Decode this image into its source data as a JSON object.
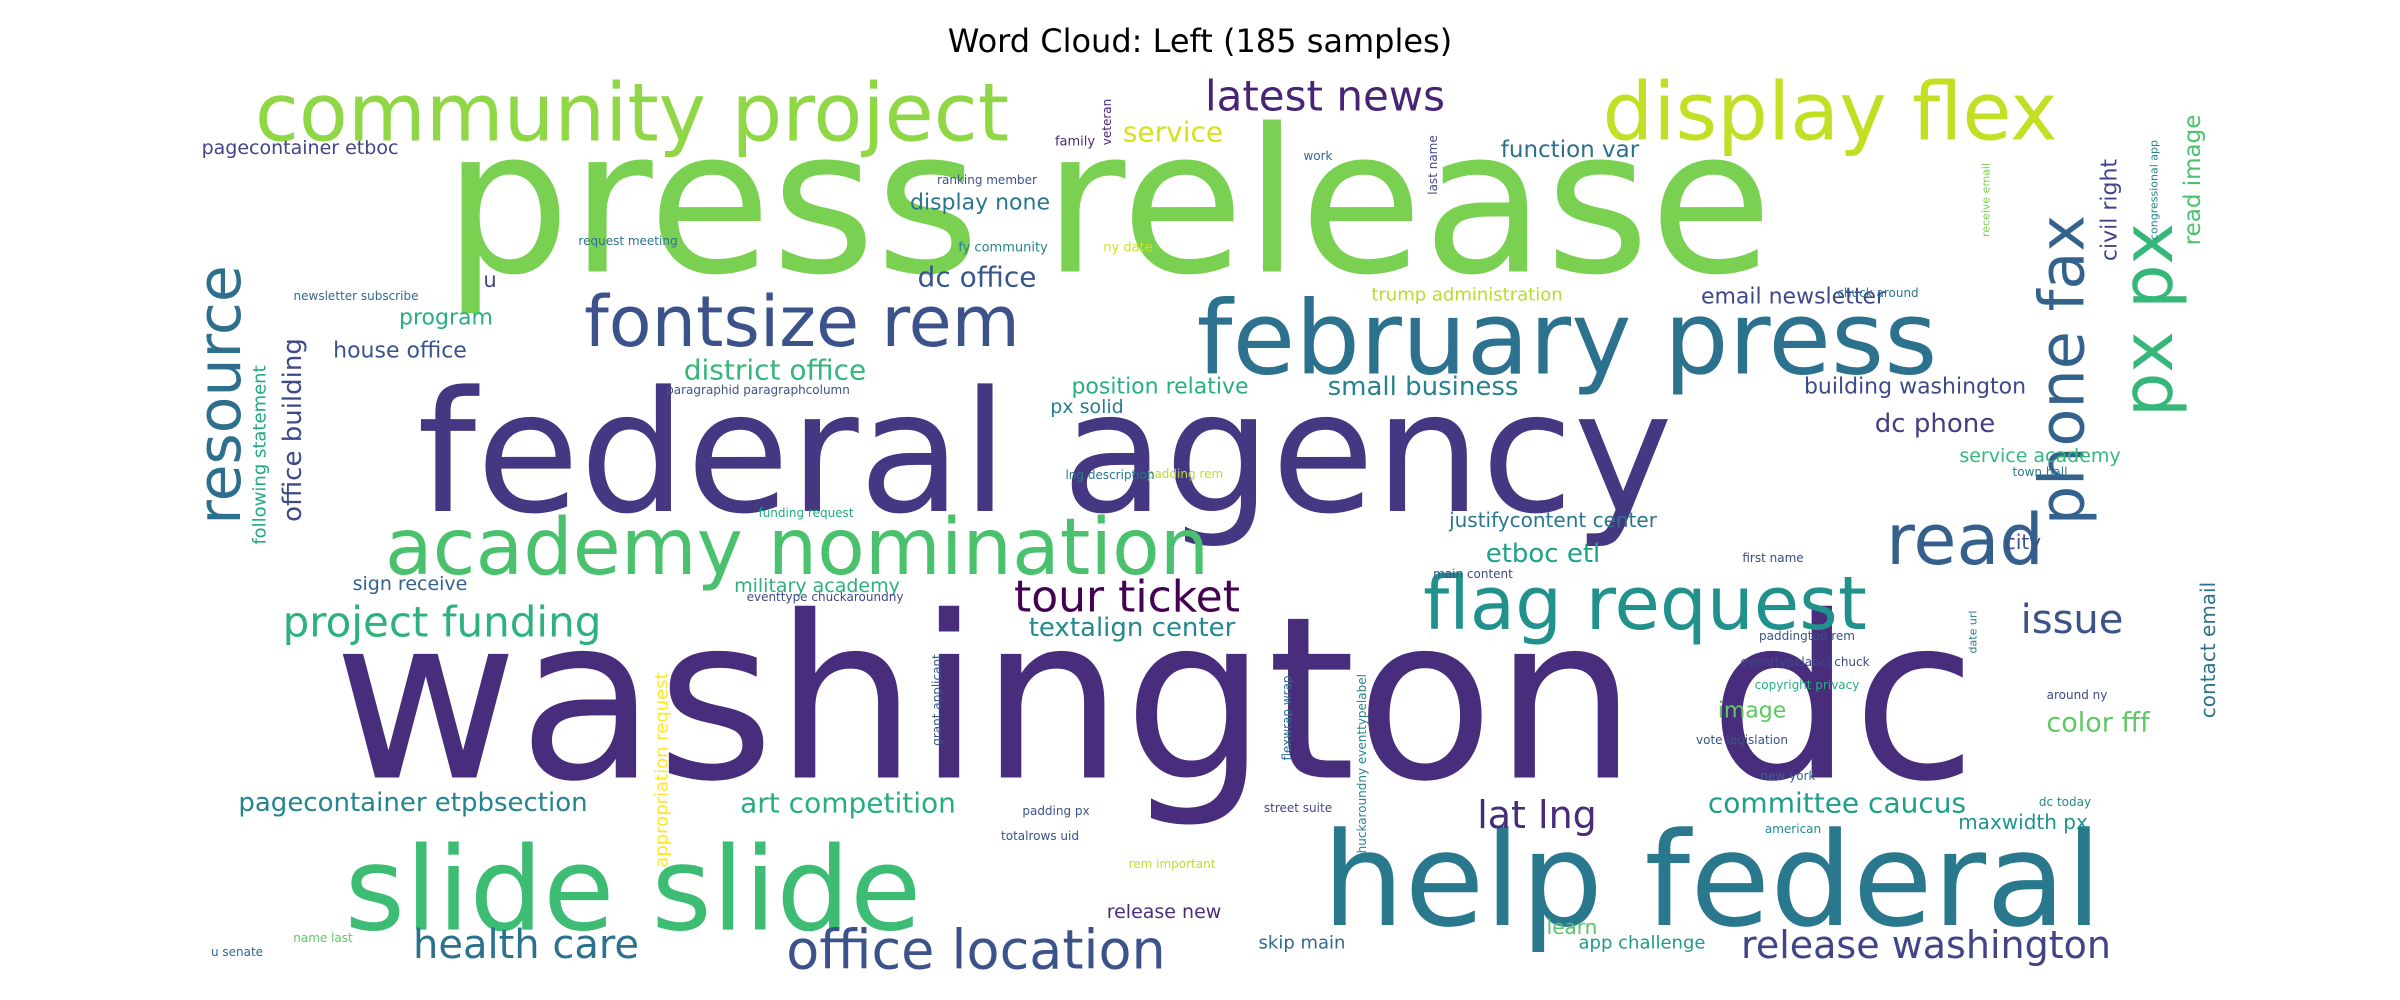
{
  "title": "Word Cloud: Left (185 samples)",
  "words": [
    {
      "text": "washington dc",
      "color": "#472d7b"
    },
    {
      "text": "press release",
      "color": "#7ad151"
    },
    {
      "text": "federal agency",
      "color": "#453781"
    },
    {
      "text": "help federal",
      "color": "#2a788e"
    },
    {
      "text": "slide slide",
      "color": "#3dbc74"
    },
    {
      "text": "february press",
      "color": "#2c728e"
    },
    {
      "text": "community project",
      "color": "#8fd744"
    },
    {
      "text": "display flex",
      "color": "#c2df23"
    },
    {
      "text": "academy nomination",
      "color": "#4ac16d"
    },
    {
      "text": "fontsize rem",
      "color": "#3b528b"
    },
    {
      "text": "flag request",
      "color": "#21918c"
    },
    {
      "text": "resource",
      "color": "#2e6f8e"
    },
    {
      "text": "read",
      "color": "#355f8d"
    },
    {
      "text": "phone fax",
      "color": "#33638d"
    },
    {
      "text": "px px",
      "color": "#35b779"
    },
    {
      "text": "office location",
      "color": "#3b528b"
    },
    {
      "text": "tour ticket",
      "color": "#440154"
    },
    {
      "text": "project funding",
      "color": "#2db27d"
    },
    {
      "text": "latest news",
      "color": "#482475"
    },
    {
      "text": "health care",
      "color": "#2c728e"
    },
    {
      "text": "release washington",
      "color": "#414487"
    },
    {
      "text": "issue",
      "color": "#3b528b"
    },
    {
      "text": "lat lng",
      "color": "#472c7a"
    },
    {
      "text": "art competition",
      "color": "#27ad81"
    },
    {
      "text": "committee caucus",
      "color": "#1f9e89"
    },
    {
      "text": "pagecontainer etpbsection",
      "color": "#25848e"
    },
    {
      "text": "color fff",
      "color": "#5ec962"
    },
    {
      "text": "district office",
      "color": "#35b779"
    },
    {
      "text": "dc office",
      "color": "#39568c"
    },
    {
      "text": "small business",
      "color": "#26828e"
    },
    {
      "text": "dc phone",
      "color": "#433e85"
    },
    {
      "text": "office building",
      "color": "#3e4989"
    },
    {
      "text": "etboc etl",
      "color": "#1fa187"
    },
    {
      "text": "textalign center",
      "color": "#23898e"
    },
    {
      "text": "service",
      "color": "#d8e219"
    },
    {
      "text": "display none",
      "color": "#2a768e"
    },
    {
      "text": "function var",
      "color": "#2d708e"
    },
    {
      "text": "position relative",
      "color": "#29af7f"
    },
    {
      "text": "house office",
      "color": "#3b528b"
    },
    {
      "text": "building washington",
      "color": "#3e4989"
    },
    {
      "text": "email newsletter",
      "color": "#3f4788"
    },
    {
      "text": "read image",
      "color": "#4ac16d"
    },
    {
      "text": "civil right",
      "color": "#404688"
    },
    {
      "text": "pagecontainer etboc",
      "color": "#414487"
    },
    {
      "text": "program",
      "color": "#2ab07f"
    },
    {
      "text": "following statement",
      "color": "#22a884"
    },
    {
      "text": "px solid",
      "color": "#287c8e"
    },
    {
      "text": "service academy",
      "color": "#35b779"
    },
    {
      "text": "justifycontent center",
      "color": "#2a778e"
    },
    {
      "text": "city",
      "color": "#3b528b"
    },
    {
      "text": "military academy",
      "color": "#2db27d"
    },
    {
      "text": "sign receive",
      "color": "#33638d"
    },
    {
      "text": "image",
      "color": "#5ec962"
    },
    {
      "text": "contact email",
      "color": "#2c728e"
    },
    {
      "text": "maxwidth px",
      "color": "#20928c"
    },
    {
      "text": "trump administration",
      "color": "#b5de2b"
    },
    {
      "text": "release new",
      "color": "#472d7b"
    },
    {
      "text": "skip main",
      "color": "#31688e"
    },
    {
      "text": "app challenge",
      "color": "#1f9a8a"
    },
    {
      "text": "learn",
      "color": "#54c568"
    },
    {
      "text": "appropriation request",
      "color": "#fde725"
    },
    {
      "text": "u",
      "color": "#404688"
    },
    {
      "text": "veteran",
      "color": "#482475"
    },
    {
      "text": "family",
      "color": "#482878"
    },
    {
      "text": "work",
      "color": "#31688e"
    },
    {
      "text": "last name",
      "color": "#3e4989"
    },
    {
      "text": "ranking member",
      "color": "#3b528b"
    },
    {
      "text": "fy community",
      "color": "#25848e"
    },
    {
      "text": "ny date",
      "color": "#d2e21b"
    },
    {
      "text": "request meeting",
      "color": "#2c728e"
    },
    {
      "text": "newsletter subscribe",
      "color": "#31688e"
    },
    {
      "text": "paragraphid paragraphcolumn",
      "color": "#3b528b"
    },
    {
      "text": "padding rem",
      "color": "#bddf26"
    },
    {
      "text": "lng description",
      "color": "#2a788e"
    },
    {
      "text": "funding request",
      "color": "#22a884"
    },
    {
      "text": "main content",
      "color": "#3e4989"
    },
    {
      "text": "first name",
      "color": "#3e4989"
    },
    {
      "text": "town hall",
      "color": "#2a788e"
    },
    {
      "text": "chuck around",
      "color": "#2a788e"
    },
    {
      "text": "receive email",
      "color": "#7ad151"
    },
    {
      "text": "congressional app",
      "color": "#26828e"
    },
    {
      "text": "paddingtop rem",
      "color": "#3b528b"
    },
    {
      "text": "eventtypelabel chuck",
      "color": "#3e4989"
    },
    {
      "text": "copyright privacy",
      "color": "#27ad81"
    },
    {
      "text": "date url",
      "color": "#2a788e"
    },
    {
      "text": "around ny",
      "color": "#3e4989"
    },
    {
      "text": "vote legislation",
      "color": "#3b528b"
    },
    {
      "text": "new york",
      "color": "#31688e"
    },
    {
      "text": "dc today",
      "color": "#23898e"
    },
    {
      "text": "american",
      "color": "#23898e"
    },
    {
      "text": "eventtype chuckaroundny",
      "color": "#3e4989"
    },
    {
      "text": "grant applicant",
      "color": "#39568c"
    },
    {
      "text": "flexwrap wrap",
      "color": "#2c728e"
    },
    {
      "text": "chuckaroundny eventtypelabel",
      "color": "#25848e"
    },
    {
      "text": "padding px",
      "color": "#3b528b"
    },
    {
      "text": "street suite",
      "color": "#3e4989"
    },
    {
      "text": "totalrows uid",
      "color": "#3b528b"
    },
    {
      "text": "rem important",
      "color": "#bddf26"
    },
    {
      "text": "name last",
      "color": "#5ec962"
    },
    {
      "text": "u senate",
      "color": "#31688e"
    }
  ]
}
